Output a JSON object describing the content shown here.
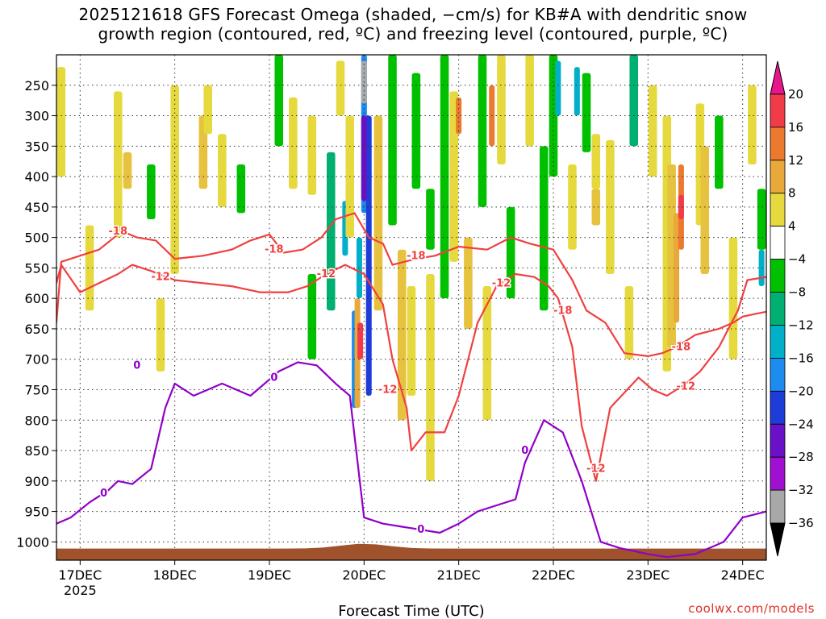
{
  "title": {
    "line1": "2025121618 GFS Forecast Omega (shaded, −cm/s) for KB#A with dendritic snow",
    "line2": "growth region (contoured, red, ºC) and freezing level (contoured, purple, ºC)"
  },
  "credit": "coolwx.com/models",
  "chart_data": {
    "type": "heatmap",
    "title": "2025121618 GFS Forecast Omega (shaded, −cm/s) for KB#A with dendritic snow growth region (contoured, red, ºC) and freezing level (contoured, purple, ºC)",
    "xlabel": "Forecast Time (UTC)",
    "ylabel": "",
    "x_ticks": [
      {
        "label": "17DEC",
        "sub": "2025",
        "t": 0.0
      },
      {
        "label": "18DEC",
        "sub": "",
        "t": 1.0
      },
      {
        "label": "19DEC",
        "sub": "",
        "t": 2.0
      },
      {
        "label": "20DEC",
        "sub": "",
        "t": 3.0
      },
      {
        "label": "21DEC",
        "sub": "",
        "t": 4.0
      },
      {
        "label": "22DEC",
        "sub": "",
        "t": 5.0
      },
      {
        "label": "23DEC",
        "sub": "",
        "t": 6.0
      },
      {
        "label": "24DEC",
        "sub": "",
        "t": 7.0
      }
    ],
    "xlim_days": [
      -0.25,
      7.25
    ],
    "y_ticks": [
      250,
      300,
      350,
      400,
      450,
      500,
      550,
      600,
      650,
      700,
      750,
      800,
      850,
      900,
      950,
      1000
    ],
    "ylim_hpa": [
      200,
      1030
    ],
    "colorbar": {
      "levels": [
        {
          "label": "",
          "color": "#e8168c"
        },
        {
          "label": "20",
          "color": "#f23b48"
        },
        {
          "label": "16",
          "color": "#ec7a2e"
        },
        {
          "label": "12",
          "color": "#e8a93a"
        },
        {
          "label": "8",
          "color": "#e6d93e"
        },
        {
          "label": "4",
          "color": "#ffffff"
        },
        {
          "label": "−4",
          "color": "#00c000"
        },
        {
          "label": "−8",
          "color": "#00b070"
        },
        {
          "label": "−12",
          "color": "#00b0c8"
        },
        {
          "label": "−16",
          "color": "#1c8cf0"
        },
        {
          "label": "−20",
          "color": "#1e3cd8"
        },
        {
          "label": "−24",
          "color": "#6a10c8"
        },
        {
          "label": "−28",
          "color": "#a010d0"
        },
        {
          "label": "−32",
          "color": "#a8a8a8"
        },
        {
          "label": "−36",
          "color": "#000000"
        }
      ]
    },
    "omega_cells": [
      {
        "t": -0.2,
        "p": [
          220,
          400
        ],
        "v": 6
      },
      {
        "t": 0.1,
        "p": [
          480,
          620
        ],
        "v": 6
      },
      {
        "t": 0.4,
        "p": [
          260,
          500
        ],
        "v": 6
      },
      {
        "t": 0.5,
        "p": [
          360,
          420
        ],
        "v": 10
      },
      {
        "t": 0.75,
        "p": [
          380,
          470
        ],
        "v": -6
      },
      {
        "t": 0.85,
        "p": [
          600,
          720
        ],
        "v": 6
      },
      {
        "t": 1.0,
        "p": [
          250,
          560
        ],
        "v": 6
      },
      {
        "t": 1.3,
        "p": [
          300,
          420
        ],
        "v": 10
      },
      {
        "t": 1.35,
        "p": [
          250,
          330
        ],
        "v": 6
      },
      {
        "t": 1.5,
        "p": [
          330,
          450
        ],
        "v": 6
      },
      {
        "t": 1.7,
        "p": [
          380,
          460
        ],
        "v": -6
      },
      {
        "t": 2.1,
        "p": [
          200,
          350
        ],
        "v": -6
      },
      {
        "t": 2.25,
        "p": [
          270,
          420
        ],
        "v": 6
      },
      {
        "t": 2.45,
        "p": [
          300,
          430
        ],
        "v": 6
      },
      {
        "t": 2.45,
        "p": [
          560,
          700
        ],
        "v": -6
      },
      {
        "t": 2.65,
        "p": [
          360,
          620
        ],
        "v": -10
      },
      {
        "t": 2.75,
        "p": [
          210,
          300
        ],
        "v": 6
      },
      {
        "t": 2.8,
        "p": [
          440,
          530
        ],
        "v": -14
      },
      {
        "t": 2.85,
        "p": [
          300,
          500
        ],
        "v": 6
      },
      {
        "t": 2.9,
        "p": [
          620,
          780
        ],
        "v": -18
      },
      {
        "t": 2.95,
        "p": [
          500,
          600
        ],
        "v": -14
      },
      {
        "t": 3.0,
        "p": [
          200,
          460
        ],
        "v": -18
      },
      {
        "t": 3.05,
        "p": [
          300,
          760
        ],
        "v": -22
      },
      {
        "t": 3.0,
        "p": [
          300,
          440
        ],
        "v": -26
      },
      {
        "t": 3.0,
        "p": [
          210,
          280
        ],
        "v": -34
      },
      {
        "t": 2.93,
        "p": [
          600,
          780
        ],
        "v": 14
      },
      {
        "t": 2.96,
        "p": [
          640,
          700
        ],
        "v": 22
      },
      {
        "t": 3.15,
        "p": [
          300,
          620
        ],
        "v": 10
      },
      {
        "t": 3.3,
        "p": [
          200,
          480
        ],
        "v": -6
      },
      {
        "t": 3.4,
        "p": [
          520,
          800
        ],
        "v": 10
      },
      {
        "t": 3.5,
        "p": [
          580,
          760
        ],
        "v": 6
      },
      {
        "t": 3.55,
        "p": [
          230,
          420
        ],
        "v": -6
      },
      {
        "t": 3.7,
        "p": [
          420,
          520
        ],
        "v": -6
      },
      {
        "t": 3.7,
        "p": [
          560,
          900
        ],
        "v": 6
      },
      {
        "t": 3.85,
        "p": [
          200,
          600
        ],
        "v": -6
      },
      {
        "t": 3.95,
        "p": [
          260,
          540
        ],
        "v": 6
      },
      {
        "t": 4.0,
        "p": [
          270,
          330
        ],
        "v": 18
      },
      {
        "t": 4.1,
        "p": [
          500,
          650
        ],
        "v": 10
      },
      {
        "t": 4.25,
        "p": [
          200,
          450
        ],
        "v": -6
      },
      {
        "t": 4.3,
        "p": [
          580,
          800
        ],
        "v": 6
      },
      {
        "t": 4.35,
        "p": [
          250,
          350
        ],
        "v": 18
      },
      {
        "t": 4.45,
        "p": [
          200,
          380
        ],
        "v": 6
      },
      {
        "t": 4.55,
        "p": [
          450,
          600
        ],
        "v": -6
      },
      {
        "t": 4.75,
        "p": [
          200,
          350
        ],
        "v": 6
      },
      {
        "t": 4.9,
        "p": [
          350,
          620
        ],
        "v": -6
      },
      {
        "t": 5.0,
        "p": [
          200,
          400
        ],
        "v": -6
      },
      {
        "t": 5.05,
        "p": [
          210,
          300
        ],
        "v": -14
      },
      {
        "t": 5.25,
        "p": [
          220,
          300
        ],
        "v": -14
      },
      {
        "t": 5.35,
        "p": [
          230,
          360
        ],
        "v": -6
      },
      {
        "t": 5.2,
        "p": [
          380,
          520
        ],
        "v": 6
      },
      {
        "t": 5.45,
        "p": [
          330,
          420
        ],
        "v": 6
      },
      {
        "t": 5.45,
        "p": [
          420,
          480
        ],
        "v": 10
      },
      {
        "t": 5.6,
        "p": [
          340,
          560
        ],
        "v": 6
      },
      {
        "t": 5.8,
        "p": [
          580,
          700
        ],
        "v": 6
      },
      {
        "t": 5.85,
        "p": [
          200,
          350
        ],
        "v": -10
      },
      {
        "t": 6.05,
        "p": [
          250,
          400
        ],
        "v": 6
      },
      {
        "t": 6.2,
        "p": [
          300,
          720
        ],
        "v": 6
      },
      {
        "t": 6.25,
        "p": [
          380,
          680
        ],
        "v": 10
      },
      {
        "t": 6.3,
        "p": [
          460,
          640
        ],
        "v": 14
      },
      {
        "t": 6.35,
        "p": [
          380,
          520
        ],
        "v": 18
      },
      {
        "t": 6.35,
        "p": [
          430,
          470
        ],
        "v": 22
      },
      {
        "t": 6.55,
        "p": [
          280,
          480
        ],
        "v": 6
      },
      {
        "t": 6.6,
        "p": [
          350,
          560
        ],
        "v": 10
      },
      {
        "t": 6.75,
        "p": [
          300,
          420
        ],
        "v": -6
      },
      {
        "t": 6.9,
        "p": [
          500,
          700
        ],
        "v": 6
      },
      {
        "t": 7.1,
        "p": [
          250,
          380
        ],
        "v": 6
      },
      {
        "t": 7.2,
        "p": [
          420,
          520
        ],
        "v": -6
      },
      {
        "t": 7.2,
        "p": [
          520,
          580
        ],
        "v": -14
      }
    ],
    "contours": [
      {
        "name": "-18",
        "color": "#f04040",
        "x": [
          -0.25,
          -0.2,
          0.0,
          0.2,
          0.4,
          0.45,
          0.6,
          0.8,
          1.0,
          1.3,
          1.6,
          1.8,
          2.0,
          2.15,
          2.35,
          2.55,
          2.7,
          2.9,
          3.05,
          3.2,
          3.3,
          3.55,
          3.75,
          4.0,
          4.3,
          4.55,
          4.75,
          5.0,
          5.2,
          5.35,
          5.55,
          5.75,
          6.0,
          6.15,
          6.3,
          6.5,
          6.75,
          6.9,
          7.0,
          7.15,
          7.25
        ],
        "p": [
          640,
          540,
          530,
          520,
          495,
          490,
          500,
          505,
          535,
          530,
          520,
          505,
          495,
          525,
          520,
          500,
          470,
          460,
          500,
          510,
          545,
          535,
          530,
          515,
          520,
          500,
          510,
          520,
          570,
          620,
          640,
          690,
          695,
          690,
          680,
          660,
          650,
          640,
          630,
          625,
          622
        ]
      },
      {
        "name": "-12",
        "color": "#f04040",
        "x": [
          -0.25,
          -0.2,
          0.0,
          0.2,
          0.4,
          0.55,
          0.75,
          1.0,
          1.3,
          1.6,
          1.9,
          2.2,
          2.4,
          2.6,
          2.8,
          3.0,
          3.2,
          3.3,
          3.45,
          3.5,
          3.65,
          3.85,
          4.0,
          4.2,
          4.4,
          4.6,
          4.8,
          4.95,
          5.05,
          5.2,
          5.3,
          5.45,
          5.6,
          5.9,
          6.05,
          6.2,
          6.4,
          6.55,
          6.75,
          6.95,
          7.05,
          7.25
        ],
        "p": [
          575,
          545,
          590,
          575,
          560,
          545,
          555,
          570,
          575,
          580,
          590,
          590,
          580,
          560,
          545,
          560,
          610,
          700,
          780,
          850,
          820,
          820,
          760,
          640,
          580,
          560,
          565,
          580,
          600,
          680,
          810,
          900,
          780,
          730,
          750,
          760,
          740,
          720,
          680,
          620,
          570,
          565
        ]
      },
      {
        "name": "0",
        "color": "#9000c8",
        "x": [
          -0.25,
          -0.1,
          0.1,
          0.3,
          0.4,
          0.55,
          0.75,
          0.9,
          1.0,
          1.2,
          1.5,
          1.8,
          2.1,
          2.3,
          2.5,
          2.7,
          2.85,
          3.0,
          3.2,
          3.4,
          3.6,
          3.8,
          4.0,
          4.2,
          4.4,
          4.6,
          4.7,
          4.9,
          5.1,
          5.3,
          5.5,
          5.7,
          6.0,
          6.2,
          6.5,
          6.8,
          7.0,
          7.25
        ],
        "p": [
          970,
          960,
          935,
          915,
          900,
          905,
          880,
          780,
          740,
          760,
          740,
          760,
          720,
          705,
          710,
          740,
          760,
          960,
          970,
          975,
          980,
          985,
          970,
          950,
          940,
          930,
          870,
          800,
          820,
          900,
          1000,
          1010,
          1020,
          1025,
          1020,
          1000,
          960,
          950
        ]
      }
    ],
    "contour_labels": [
      {
        "text": "-18",
        "t": 0.4,
        "p": 490
      },
      {
        "text": "-18",
        "t": 2.05,
        "p": 520
      },
      {
        "text": "-18",
        "t": 3.55,
        "p": 530
      },
      {
        "text": "-18",
        "t": 5.1,
        "p": 620
      },
      {
        "text": "-18",
        "t": 6.35,
        "p": 680
      },
      {
        "text": "-12",
        "t": 0.85,
        "p": 565
      },
      {
        "text": "-12",
        "t": 2.6,
        "p": 560
      },
      {
        "text": "-12",
        "t": 3.25,
        "p": 750
      },
      {
        "text": "-12",
        "t": 4.45,
        "p": 575
      },
      {
        "text": "-12",
        "t": 5.45,
        "p": 880
      },
      {
        "text": "-12",
        "t": 6.4,
        "p": 745
      },
      {
        "text": "0",
        "t": 0.25,
        "p": 920
      },
      {
        "text": "0",
        "t": 0.6,
        "p": 710
      },
      {
        "text": "0",
        "t": 2.05,
        "p": 730
      },
      {
        "text": "0",
        "t": 3.6,
        "p": 980
      },
      {
        "text": "0",
        "t": 4.7,
        "p": 850
      }
    ]
  }
}
